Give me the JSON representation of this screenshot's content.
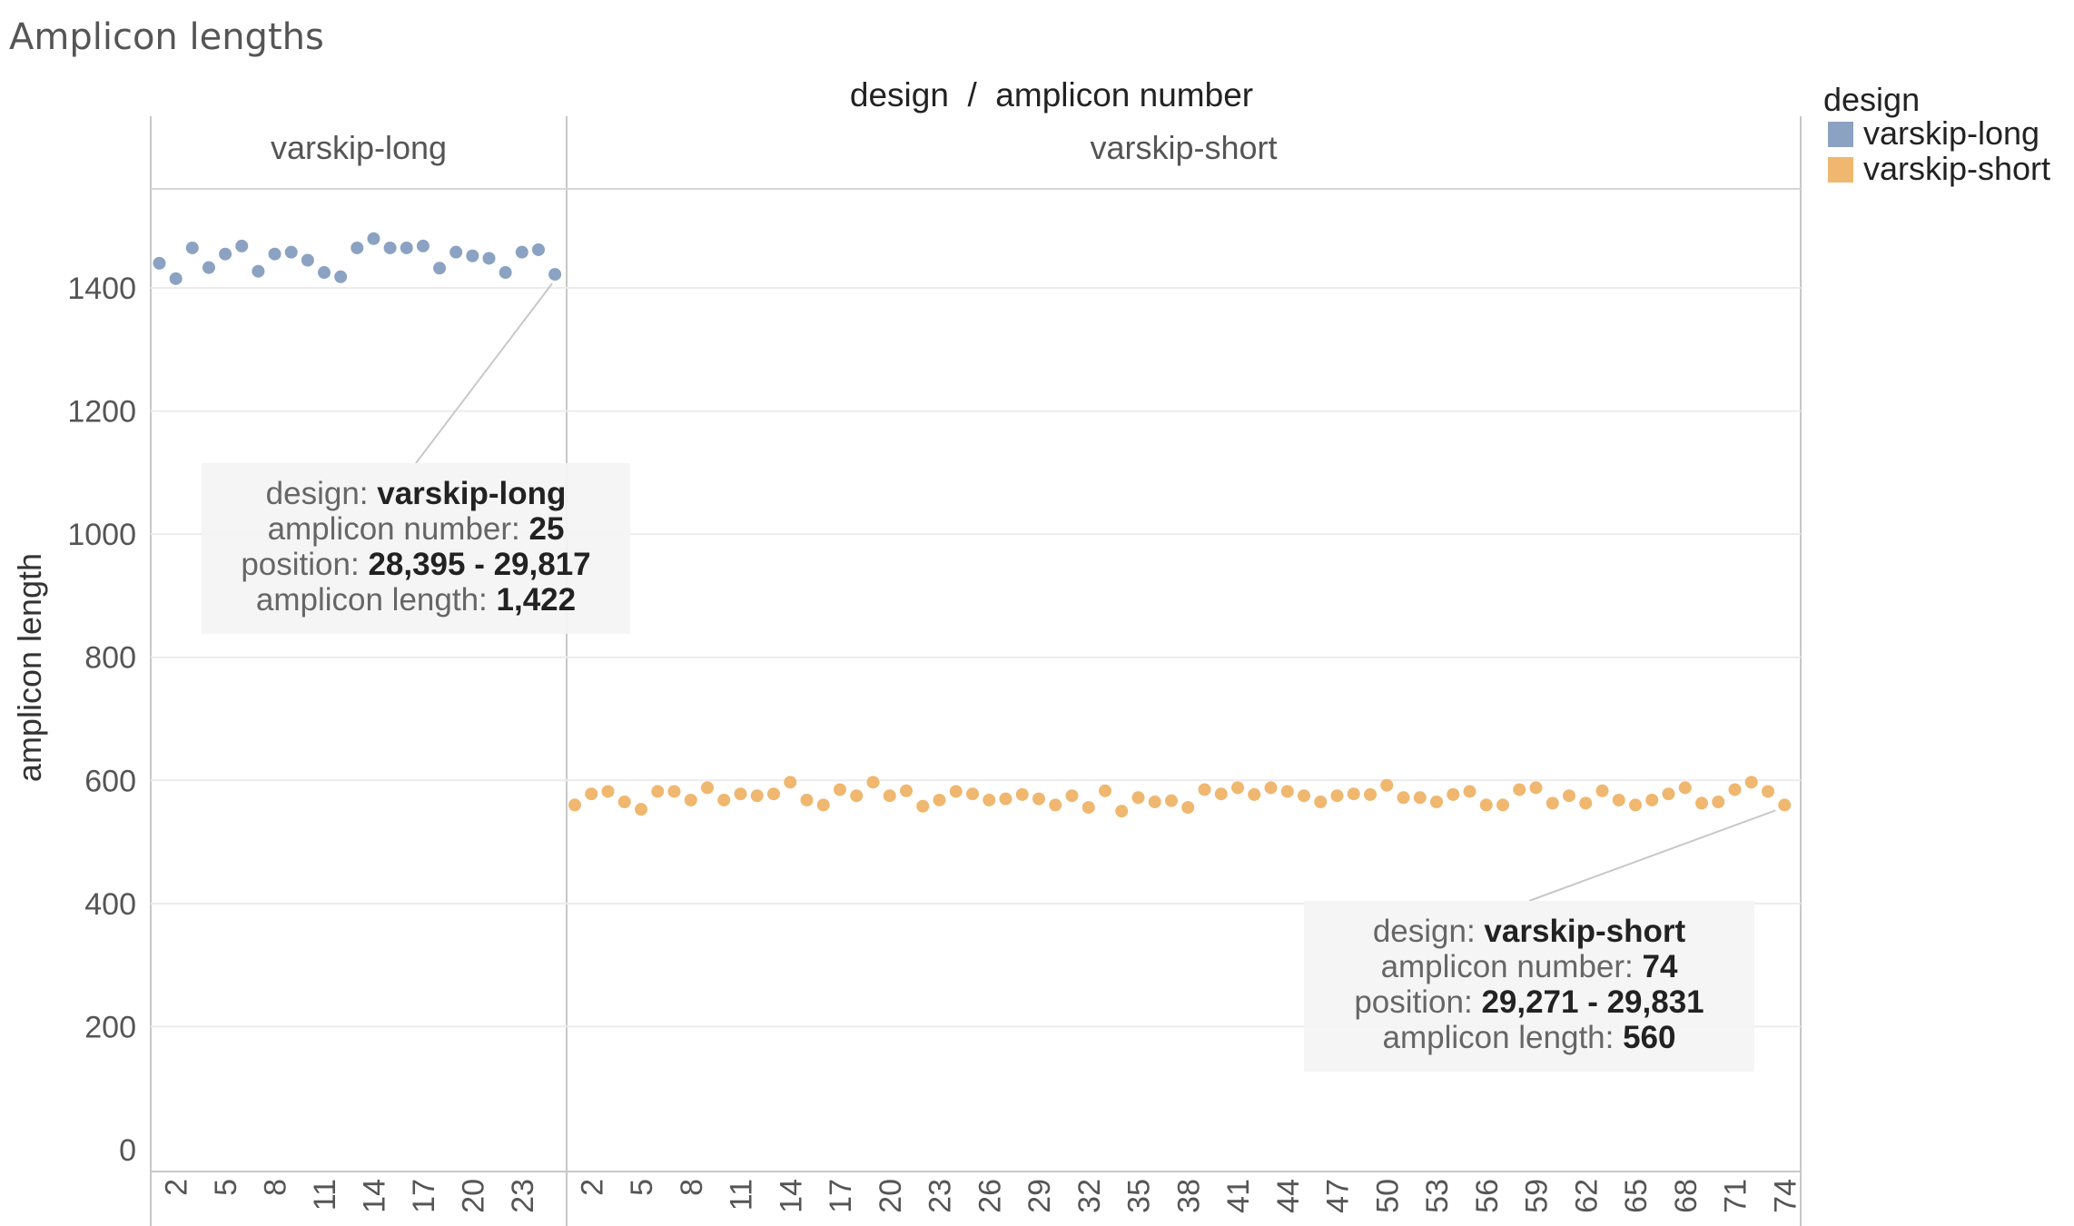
{
  "title": "Amplicon lengths",
  "chart_data": {
    "type": "scatter",
    "header": "design  /  amplicon number",
    "ylabel": "amplicon length",
    "ylim": [
      0,
      1560
    ],
    "yticks": [
      0,
      200,
      400,
      600,
      800,
      1000,
      1200,
      1400
    ],
    "grid": true,
    "legend": {
      "title": "design",
      "position": "top-right",
      "items": [
        {
          "label": "varskip-long",
          "color": "#8BA2C2"
        },
        {
          "label": "varskip-short",
          "color": "#EFB76F"
        }
      ]
    },
    "panels": [
      {
        "name": "varskip-long",
        "color": "#8BA2C2",
        "x": [
          1,
          2,
          3,
          4,
          5,
          6,
          7,
          8,
          9,
          10,
          11,
          12,
          13,
          14,
          15,
          16,
          17,
          18,
          19,
          20,
          21,
          22,
          23,
          24,
          25
        ],
        "values": [
          1440,
          1415,
          1465,
          1433,
          1455,
          1468,
          1427,
          1455,
          1458,
          1445,
          1425,
          1418,
          1465,
          1480,
          1465,
          1465,
          1468,
          1432,
          1458,
          1452,
          1448,
          1425,
          1458,
          1462,
          1422
        ],
        "ticks": [
          "2",
          "5",
          "8",
          "11",
          "14",
          "17",
          "20",
          "23"
        ],
        "tick_values": [
          2,
          5,
          8,
          11,
          14,
          17,
          20,
          23
        ]
      },
      {
        "name": "varskip-short",
        "color": "#EFB76F",
        "x": [
          1,
          2,
          3,
          4,
          5,
          6,
          7,
          8,
          9,
          10,
          11,
          12,
          13,
          14,
          15,
          16,
          17,
          18,
          19,
          20,
          21,
          22,
          23,
          24,
          25,
          26,
          27,
          28,
          29,
          30,
          31,
          32,
          33,
          34,
          35,
          36,
          37,
          38,
          39,
          40,
          41,
          42,
          43,
          44,
          45,
          46,
          47,
          48,
          49,
          50,
          51,
          52,
          53,
          54,
          55,
          56,
          57,
          58,
          59,
          60,
          61,
          62,
          63,
          64,
          65,
          66,
          67,
          68,
          69,
          70,
          71,
          72,
          73,
          74
        ],
        "values": [
          560,
          578,
          582,
          565,
          553,
          582,
          582,
          568,
          588,
          568,
          578,
          575,
          578,
          597,
          568,
          560,
          585,
          575,
          597,
          575,
          583,
          558,
          568,
          582,
          578,
          568,
          570,
          577,
          570,
          560,
          575,
          556,
          583,
          550,
          572,
          565,
          567,
          556,
          585,
          578,
          588,
          577,
          588,
          582,
          575,
          565,
          575,
          578,
          577,
          592,
          572,
          572,
          565,
          577,
          582,
          560,
          560,
          585,
          588,
          563,
          575,
          563,
          583,
          568,
          560,
          568,
          578,
          588,
          563,
          565,
          585,
          597,
          582,
          560
        ],
        "ticks": [
          "2",
          "5",
          "8",
          "11",
          "14",
          "17",
          "20",
          "23",
          "26",
          "29",
          "32",
          "35",
          "38",
          "41",
          "44",
          "47",
          "50",
          "53",
          "56",
          "59",
          "62",
          "65",
          "68",
          "71",
          "74"
        ],
        "tick_values": [
          2,
          5,
          8,
          11,
          14,
          17,
          20,
          23,
          26,
          29,
          32,
          35,
          38,
          41,
          44,
          47,
          50,
          53,
          56,
          59,
          62,
          65,
          68,
          71,
          74
        ]
      }
    ],
    "tooltips": [
      {
        "panel": 0,
        "point_x": 25,
        "rows": [
          {
            "key": "design: ",
            "value": "varskip-long"
          },
          {
            "key": "amplicon number: ",
            "value": "25"
          },
          {
            "key": "position: ",
            "value": "28,395 - 29,817"
          },
          {
            "key": "amplicon length: ",
            "value": "1,422"
          }
        ]
      },
      {
        "panel": 1,
        "point_x": 74,
        "rows": [
          {
            "key": "design: ",
            "value": "varskip-short"
          },
          {
            "key": "amplicon number: ",
            "value": "74"
          },
          {
            "key": "position: ",
            "value": "29,271 - 29,831"
          },
          {
            "key": "amplicon length: ",
            "value": "560"
          }
        ]
      }
    ]
  }
}
